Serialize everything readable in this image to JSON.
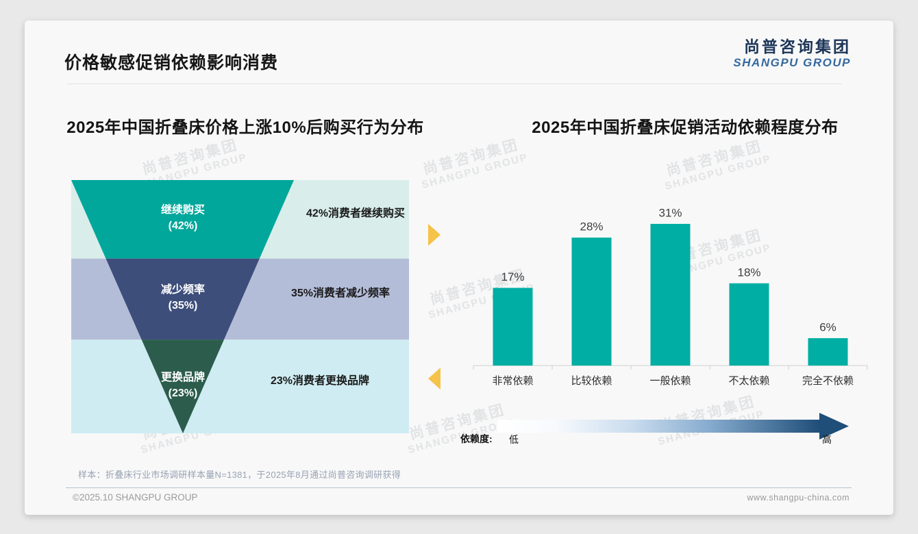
{
  "page": {
    "title": "价格敏感促销依赖影响消费",
    "logo": {
      "cn": "尚普咨询集团",
      "en": "SHANGPU GROUP"
    },
    "watermark": {
      "line1": "尚普咨询集团",
      "line2": "SHANGPU GROUP"
    },
    "footnote": "样本：折叠床行业市场调研样本量N=1381，于2025年8月通过尚普咨询调研获得",
    "footer_left": "©2025.10 SHANGPU GROUP",
    "footer_right": "www.shangpu-china.com"
  },
  "colors": {
    "funnel_teal": "#02a79b",
    "funnel_navy": "#3d4e7b",
    "funnel_green": "#2b5c4c",
    "band_mint": "#d9eeea",
    "band_periwinkle": "#b4bdd8",
    "band_cyan": "#cfecf2",
    "bar_teal": "#00aea4",
    "arrow_amber": "#f5c24a",
    "gradient_start": "#ffffff",
    "gradient_end": "#1f4e79",
    "logo_navy": "#1c3557",
    "logo_blue": "#35689f"
  },
  "chart_data": [
    {
      "type": "funnel",
      "title": "2025年中国折叠床价格上涨10%后购买行为分布",
      "unit": "%",
      "stages": [
        {
          "label": "继续购买",
          "value": 42,
          "annotation": "42%消费者继续购买",
          "color": "#02a79b",
          "band_color": "#d9eeea"
        },
        {
          "label": "减少频率",
          "value": 35,
          "annotation": "35%消费者减少频率",
          "color": "#3d4e7b",
          "band_color": "#b4bdd8"
        },
        {
          "label": "更换品牌",
          "value": 23,
          "annotation": "23%消费者更换品牌",
          "color": "#2b5c4c",
          "band_color": "#cfecf2"
        }
      ]
    },
    {
      "type": "bar",
      "title": "2025年中国折叠床促销活动依赖程度分布",
      "unit": "%",
      "categories": [
        "非常依赖",
        "比较依赖",
        "一般依赖",
        "不太依赖",
        "完全不依赖"
      ],
      "values": [
        17,
        28,
        31,
        18,
        6
      ],
      "bar_color": "#00aea4",
      "ylim": [
        0,
        35
      ],
      "grid": false,
      "dependence_legend": {
        "label": "依赖度:",
        "low": "低",
        "high": "高"
      }
    }
  ]
}
